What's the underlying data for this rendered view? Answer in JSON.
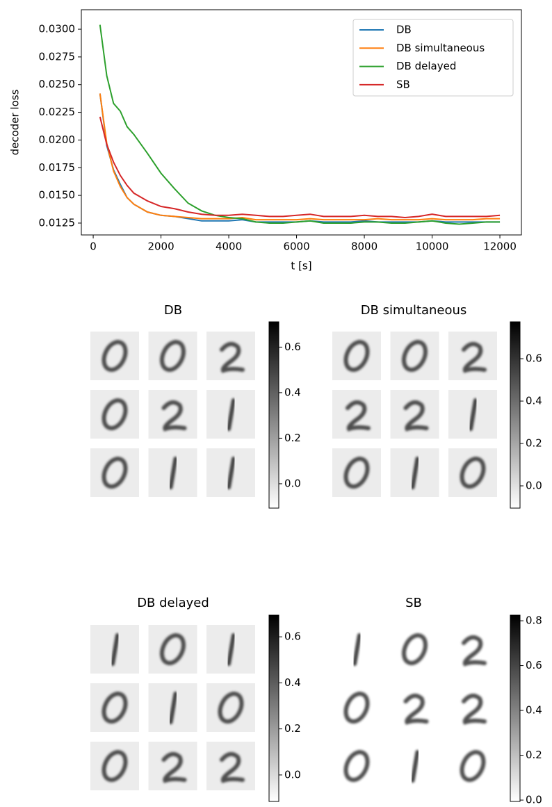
{
  "chart_data": [
    {
      "type": "line",
      "ylabel": "decoder loss",
      "xlabel": "t [s]",
      "x": [
        200,
        400,
        600,
        800,
        1000,
        1200,
        1600,
        2000,
        2400,
        2800,
        3200,
        3600,
        4000,
        4400,
        4800,
        5200,
        5600,
        6000,
        6400,
        6800,
        7200,
        7600,
        8000,
        8400,
        8800,
        9200,
        9600,
        10000,
        10400,
        10800,
        11200,
        11600,
        12000
      ],
      "series": [
        {
          "name": "DB",
          "color": "#1f77b4",
          "values": [
            0.0242,
            0.0195,
            0.0173,
            0.016,
            0.0148,
            0.0142,
            0.0135,
            0.0132,
            0.0131,
            0.0129,
            0.0127,
            0.0127,
            0.0127,
            0.0128,
            0.0126,
            0.0126,
            0.0126,
            0.0126,
            0.0127,
            0.0126,
            0.0126,
            0.0126,
            0.0127,
            0.0126,
            0.0126,
            0.0126,
            0.0126,
            0.0127,
            0.0126,
            0.0126,
            0.0126,
            0.0126,
            0.0126
          ]
        },
        {
          "name": "DB simultaneous",
          "color": "#ff7f0e",
          "values": [
            0.0242,
            0.0197,
            0.0172,
            0.0158,
            0.0148,
            0.0142,
            0.0135,
            0.0132,
            0.0131,
            0.013,
            0.0129,
            0.0129,
            0.0129,
            0.013,
            0.0128,
            0.0128,
            0.0128,
            0.0128,
            0.0129,
            0.0128,
            0.0128,
            0.0128,
            0.0128,
            0.0129,
            0.0128,
            0.0128,
            0.0128,
            0.0129,
            0.0128,
            0.0128,
            0.0128,
            0.0129,
            0.0129
          ]
        },
        {
          "name": "DB delayed",
          "color": "#2ca02c",
          "values": [
            0.0304,
            0.0258,
            0.0233,
            0.0226,
            0.0212,
            0.0205,
            0.0188,
            0.017,
            0.0156,
            0.0143,
            0.0136,
            0.0132,
            0.013,
            0.0129,
            0.0126,
            0.0125,
            0.0125,
            0.0126,
            0.0127,
            0.0125,
            0.0125,
            0.0125,
            0.0126,
            0.0126,
            0.0125,
            0.0125,
            0.0126,
            0.0127,
            0.0125,
            0.0124,
            0.0125,
            0.0126,
            0.0126
          ]
        },
        {
          "name": "SB",
          "color": "#d62728",
          "values": [
            0.0221,
            0.0196,
            0.018,
            0.0168,
            0.0159,
            0.0152,
            0.0145,
            0.014,
            0.0138,
            0.0135,
            0.0133,
            0.0132,
            0.0132,
            0.0133,
            0.0132,
            0.0131,
            0.0131,
            0.0132,
            0.0133,
            0.0131,
            0.0131,
            0.0131,
            0.0132,
            0.0131,
            0.0131,
            0.013,
            0.0131,
            0.0133,
            0.0131,
            0.0131,
            0.0131,
            0.0131,
            0.0132
          ]
        }
      ],
      "xlim": [
        -350,
        12635
      ],
      "xticks": [
        0,
        2000,
        4000,
        6000,
        8000,
        10000,
        12000
      ],
      "ylim": [
        0.01143,
        0.03176
      ],
      "yticks": [
        {
          "value": 0.0125,
          "label": "0.0125"
        },
        {
          "value": 0.015,
          "label": "0.0150"
        },
        {
          "value": 0.0175,
          "label": "0.0175"
        },
        {
          "value": 0.02,
          "label": "0.0200"
        },
        {
          "value": 0.0225,
          "label": "0.0225"
        },
        {
          "value": 0.025,
          "label": "0.0250"
        },
        {
          "value": 0.0275,
          "label": "0.0275"
        },
        {
          "value": 0.03,
          "label": "0.0300"
        }
      ],
      "legend": "upper right"
    },
    {
      "type": "image",
      "title": "DB",
      "clim": [
        -0.107,
        0.711
      ],
      "ticks": [
        {
          "value": 0,
          "label": "0.0"
        },
        0.2,
        0.4,
        0.6
      ]
    },
    {
      "type": "image",
      "title": "DB simultaneous",
      "clim": [
        -0.105,
        0.774
      ],
      "ticks": [
        {
          "value": 0,
          "label": "0.0"
        },
        0.2,
        0.4,
        0.6
      ]
    },
    {
      "type": "image",
      "title": "DB delayed",
      "clim": [
        -0.115,
        0.694
      ],
      "ticks": [
        {
          "value": 0,
          "label": "0.0"
        },
        0.2,
        0.4,
        0.6
      ]
    },
    {
      "type": "image",
      "title": "SB",
      "clim": [
        -0.006,
        0.825
      ],
      "ticks": [
        {
          "value": 0,
          "label": "0.0"
        },
        0.2,
        0.4,
        0.6,
        0.8
      ]
    }
  ]
}
